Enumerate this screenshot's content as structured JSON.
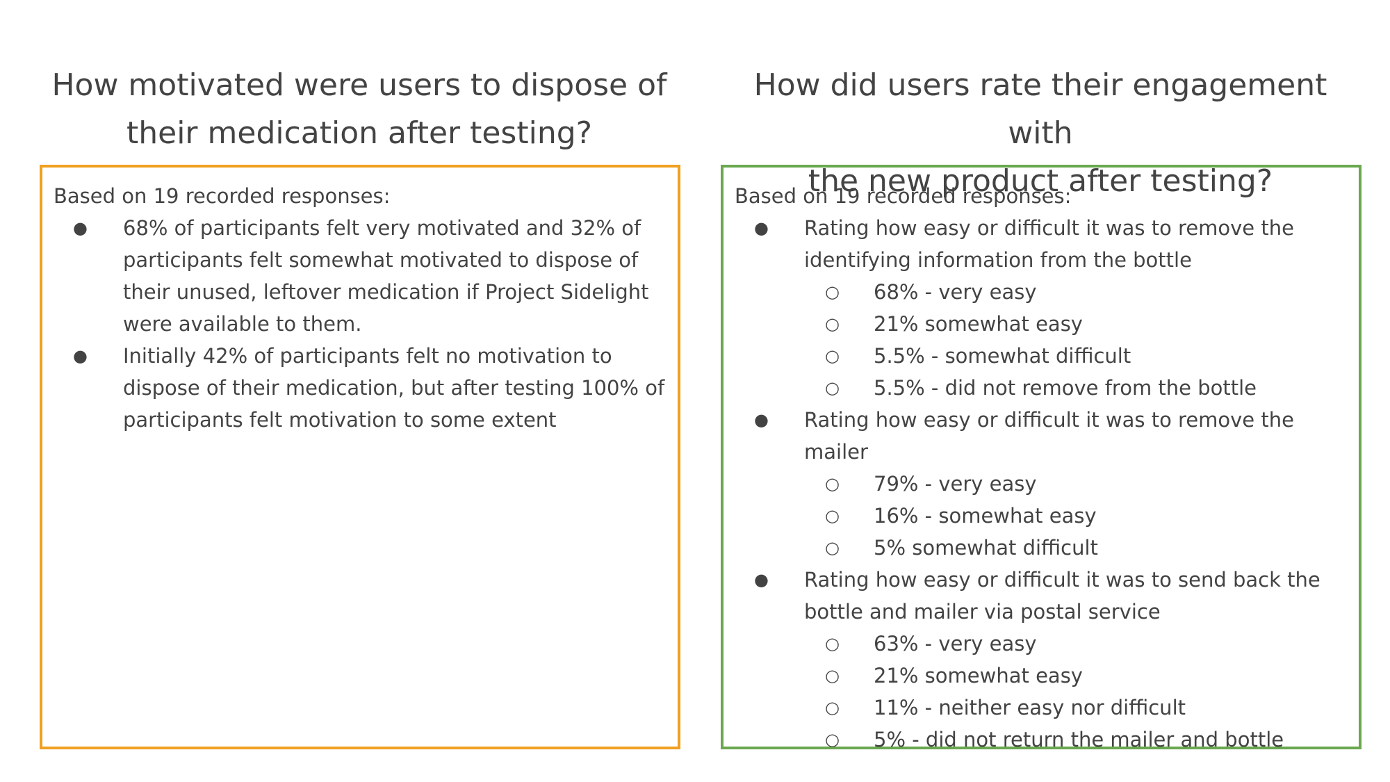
{
  "left": {
    "title_line1": "How motivated were users to dispose of",
    "title_line2": "their medication after testing?",
    "intro": "Based on 19 recorded responses:",
    "bullets": [
      "68% of participants felt very motivated and 32% of participants felt somewhat motivated to dispose of their unused, leftover medication if Project Sidelight were available to them.",
      "Initially 42% of participants felt no motivation to dispose of their medication, but after testing 100% of participants felt motivation to some extent"
    ],
    "border_color": "#f0a020"
  },
  "right": {
    "title_line1": "How did users rate their engagement with",
    "title_line2": "the new product after testing?",
    "intro": "Based on 19 recorded responses:",
    "items": [
      {
        "text": "Rating how easy or difficult it was to remove the identifying information from the bottle",
        "subs": [
          "68% - very easy",
          "21% somewhat easy",
          "5.5% - somewhat difficult",
          "5.5% - did not remove from the bottle"
        ]
      },
      {
        "text": "Rating how easy or difficult it was to remove the mailer",
        "subs": [
          "79% - very easy",
          "16% - somewhat easy",
          "5% somewhat difficult"
        ]
      },
      {
        "text": "Rating how easy or difficult it was to send back the bottle and mailer via postal service",
        "subs": [
          "63% - very easy",
          "21% somewhat easy",
          "11% - neither easy nor difficult",
          "5% - did not return the mailer and bottle"
        ]
      }
    ],
    "border_color": "#6aa84f"
  },
  "bullet_glyph": "●",
  "sub_bullet_glyph": "○"
}
